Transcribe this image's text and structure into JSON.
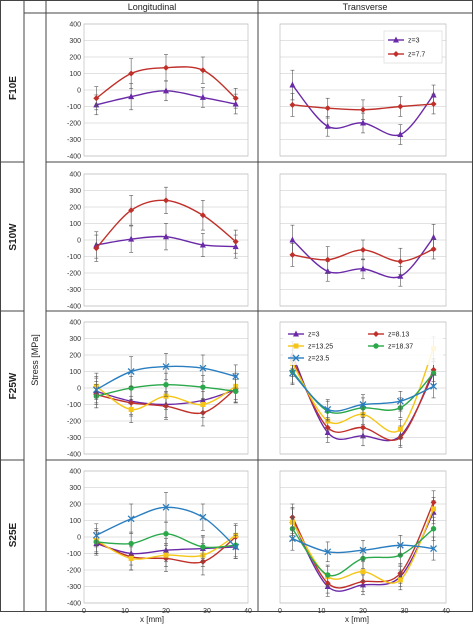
{
  "headers": {
    "longitudinal": "Longitudinal",
    "transverse": "Transverse"
  },
  "ylabel": "Stress [MPa]",
  "xlabel": "x [mm]",
  "row_labels": [
    "F10E",
    "S10W",
    "F25W",
    "S25E"
  ],
  "colors": {
    "z=3": "#6a2aa8",
    "z=7.7": "#c0302a",
    "z=8.13": "#c0302a",
    "z=13.25": "#f5c518",
    "z=18.37": "#2aa84a",
    "z=23.5": "#2a7ec0"
  },
  "chart_data": [
    {
      "type": "line",
      "specimen": "F10E",
      "direction": "Longitudinal",
      "x": [
        3,
        11.5,
        20,
        29,
        37
      ],
      "ylim": [
        -400,
        400
      ],
      "xlim": [
        0,
        40
      ],
      "y_ticks": [
        -400,
        -300,
        -200,
        -100,
        0,
        100,
        200,
        300,
        400
      ],
      "series": [
        {
          "key": "z=3",
          "values": [
            -90,
            -40,
            -5,
            -45,
            -85
          ],
          "errors": [
            60,
            80,
            60,
            60,
            60
          ]
        },
        {
          "key": "z=7.7",
          "values": [
            -50,
            100,
            135,
            120,
            -50
          ],
          "errors": [
            70,
            90,
            80,
            80,
            60
          ]
        }
      ]
    },
    {
      "type": "line",
      "specimen": "F10E",
      "direction": "Transverse",
      "x": [
        3,
        11.5,
        20,
        29,
        37
      ],
      "ylim": [
        -400,
        400
      ],
      "xlim": [
        0,
        40
      ],
      "y_ticks": [
        -400,
        -300,
        -200,
        -100,
        0,
        100,
        200,
        300,
        400
      ],
      "legend": {
        "position": "top-right",
        "entries": [
          "z=3",
          "z=7.7"
        ]
      },
      "series": [
        {
          "key": "z=3",
          "name": "z=3",
          "values": [
            30,
            -220,
            -200,
            -270,
            -30
          ],
          "errors": [
            90,
            60,
            60,
            60,
            60
          ]
        },
        {
          "key": "z=7.7",
          "name": "z=7.7",
          "values": [
            -90,
            -110,
            -120,
            -100,
            -85
          ],
          "errors": [
            70,
            60,
            60,
            60,
            60
          ]
        }
      ]
    },
    {
      "type": "line",
      "specimen": "S10W",
      "direction": "Longitudinal",
      "x": [
        3,
        11.5,
        20,
        29,
        37
      ],
      "ylim": [
        -400,
        400
      ],
      "xlim": [
        0,
        40
      ],
      "y_ticks": [
        -400,
        -300,
        -200,
        -100,
        0,
        100,
        200,
        300,
        400
      ],
      "series": [
        {
          "key": "z=3",
          "values": [
            -30,
            5,
            20,
            -30,
            -40
          ],
          "errors": [
            80,
            80,
            80,
            70,
            70
          ]
        },
        {
          "key": "z=7.7",
          "values": [
            -50,
            180,
            240,
            150,
            -10
          ],
          "errors": [
            80,
            90,
            80,
            90,
            70
          ]
        }
      ]
    },
    {
      "type": "line",
      "specimen": "S10W",
      "direction": "Transverse",
      "x": [
        3,
        11.5,
        20,
        29,
        37
      ],
      "ylim": [
        -400,
        400
      ],
      "xlim": [
        0,
        40
      ],
      "y_ticks": [
        -400,
        -300,
        -200,
        -100,
        0,
        100,
        200,
        300,
        400
      ],
      "series": [
        {
          "key": "z=3",
          "values": [
            0,
            -190,
            -175,
            -220,
            15
          ],
          "errors": [
            90,
            60,
            60,
            60,
            80
          ]
        },
        {
          "key": "z=7.7",
          "values": [
            -90,
            -120,
            -60,
            -130,
            -55
          ],
          "errors": [
            70,
            80,
            60,
            80,
            60
          ]
        }
      ]
    },
    {
      "type": "line",
      "specimen": "F25W",
      "direction": "Longitudinal",
      "x": [
        3,
        11.5,
        20,
        29,
        37
      ],
      "ylim": [
        -400,
        400
      ],
      "xlim": [
        0,
        40
      ],
      "y_ticks": [
        -400,
        -300,
        -200,
        -100,
        0,
        100,
        200,
        300,
        400
      ],
      "series": [
        {
          "key": "z=3",
          "values": [
            -20,
            -80,
            -100,
            -75,
            -10
          ],
          "errors": [
            80,
            80,
            80,
            80,
            80
          ]
        },
        {
          "key": "z=8.13",
          "values": [
            -40,
            -90,
            -110,
            -150,
            -5
          ],
          "errors": [
            80,
            80,
            80,
            80,
            80
          ]
        },
        {
          "key": "z=13.25",
          "values": [
            10,
            -130,
            -50,
            -100,
            10
          ],
          "errors": [
            80,
            80,
            80,
            80,
            80
          ]
        },
        {
          "key": "z=18.37",
          "values": [
            -50,
            0,
            20,
            5,
            -20
          ],
          "errors": [
            70,
            70,
            70,
            70,
            70
          ]
        },
        {
          "key": "z=23.5",
          "values": [
            -10,
            100,
            130,
            120,
            70
          ],
          "errors": [
            80,
            90,
            80,
            80,
            70
          ]
        }
      ]
    },
    {
      "type": "line",
      "specimen": "F25W",
      "direction": "Transverse",
      "x": [
        3,
        11.5,
        20,
        29,
        37
      ],
      "ylim": [
        -400,
        400
      ],
      "xlim": [
        0,
        40
      ],
      "y_ticks": [
        -400,
        -300,
        -200,
        -100,
        0,
        100,
        200,
        300,
        400
      ],
      "legend": {
        "position": "top",
        "entries": [
          "z=3",
          "z=8.13",
          "z=13.25",
          "z=18.37",
          "z=23.5"
        ]
      },
      "series": [
        {
          "key": "z=3",
          "name": "z=3",
          "values": [
            200,
            -270,
            -290,
            -290,
            90
          ],
          "errors": [
            80,
            60,
            60,
            60,
            70
          ]
        },
        {
          "key": "z=8.13",
          "name": "z=8.13",
          "values": [
            170,
            -240,
            -240,
            -300,
            110
          ],
          "errors": [
            80,
            60,
            60,
            60,
            70
          ]
        },
        {
          "key": "z=13.25",
          "name": "z=13.25",
          "values": [
            150,
            -200,
            -160,
            -250,
            240
          ],
          "errors": [
            80,
            60,
            60,
            60,
            70
          ]
        },
        {
          "key": "z=18.37",
          "name": "z=18.37",
          "values": [
            100,
            -140,
            -120,
            -120,
            90
          ],
          "errors": [
            70,
            60,
            60,
            60,
            70
          ]
        },
        {
          "key": "z=23.5",
          "name": "z=23.5",
          "values": [
            90,
            -130,
            -100,
            -80,
            10
          ],
          "errors": [
            70,
            60,
            60,
            60,
            70
          ]
        }
      ]
    },
    {
      "type": "line",
      "specimen": "S25E",
      "direction": "Longitudinal",
      "x": [
        3,
        11.5,
        20,
        29,
        37
      ],
      "ylim": [
        -400,
        400
      ],
      "xlim": [
        0,
        40
      ],
      "y_ticks": [
        -400,
        -300,
        -200,
        -100,
        0,
        100,
        200,
        300,
        400
      ],
      "x_ticks": [
        0,
        10,
        20,
        30,
        40
      ],
      "series": [
        {
          "key": "z=3",
          "values": [
            -40,
            -100,
            -80,
            -70,
            -60
          ],
          "errors": [
            70,
            70,
            70,
            70,
            70
          ]
        },
        {
          "key": "z=8.13",
          "values": [
            -30,
            -120,
            -130,
            -150,
            0
          ],
          "errors": [
            70,
            80,
            80,
            80,
            70
          ]
        },
        {
          "key": "z=13.25",
          "values": [
            -20,
            -130,
            -110,
            -110,
            10
          ],
          "errors": [
            70,
            70,
            70,
            70,
            70
          ]
        },
        {
          "key": "z=18.37",
          "values": [
            -30,
            -40,
            20,
            -60,
            -50
          ],
          "errors": [
            70,
            70,
            70,
            70,
            70
          ]
        },
        {
          "key": "z=23.5",
          "values": [
            10,
            110,
            180,
            120,
            -60
          ],
          "errors": [
            70,
            90,
            90,
            80,
            70
          ]
        }
      ]
    },
    {
      "type": "line",
      "specimen": "S25E",
      "direction": "Transverse",
      "x": [
        3,
        11.5,
        20,
        29,
        37
      ],
      "ylim": [
        -400,
        400
      ],
      "xlim": [
        0,
        40
      ],
      "y_ticks": [
        -400,
        -300,
        -200,
        -100,
        0,
        100,
        200,
        300,
        400
      ],
      "x_ticks": [
        0,
        10,
        20,
        30,
        40
      ],
      "series": [
        {
          "key": "z=3",
          "values": [
            100,
            -300,
            -290,
            -240,
            150
          ],
          "errors": [
            80,
            60,
            60,
            60,
            70
          ]
        },
        {
          "key": "z=8.13",
          "values": [
            120,
            -280,
            -270,
            -220,
            210
          ],
          "errors": [
            80,
            60,
            60,
            60,
            70
          ]
        },
        {
          "key": "z=13.25",
          "values": [
            90,
            -240,
            -210,
            -260,
            170
          ],
          "errors": [
            80,
            60,
            60,
            60,
            70
          ]
        },
        {
          "key": "z=18.37",
          "values": [
            50,
            -230,
            -130,
            -110,
            50
          ],
          "errors": [
            70,
            60,
            60,
            60,
            70
          ]
        },
        {
          "key": "z=23.5",
          "values": [
            -10,
            -90,
            -80,
            -50,
            -70
          ],
          "errors": [
            70,
            60,
            60,
            60,
            70
          ]
        }
      ]
    }
  ]
}
